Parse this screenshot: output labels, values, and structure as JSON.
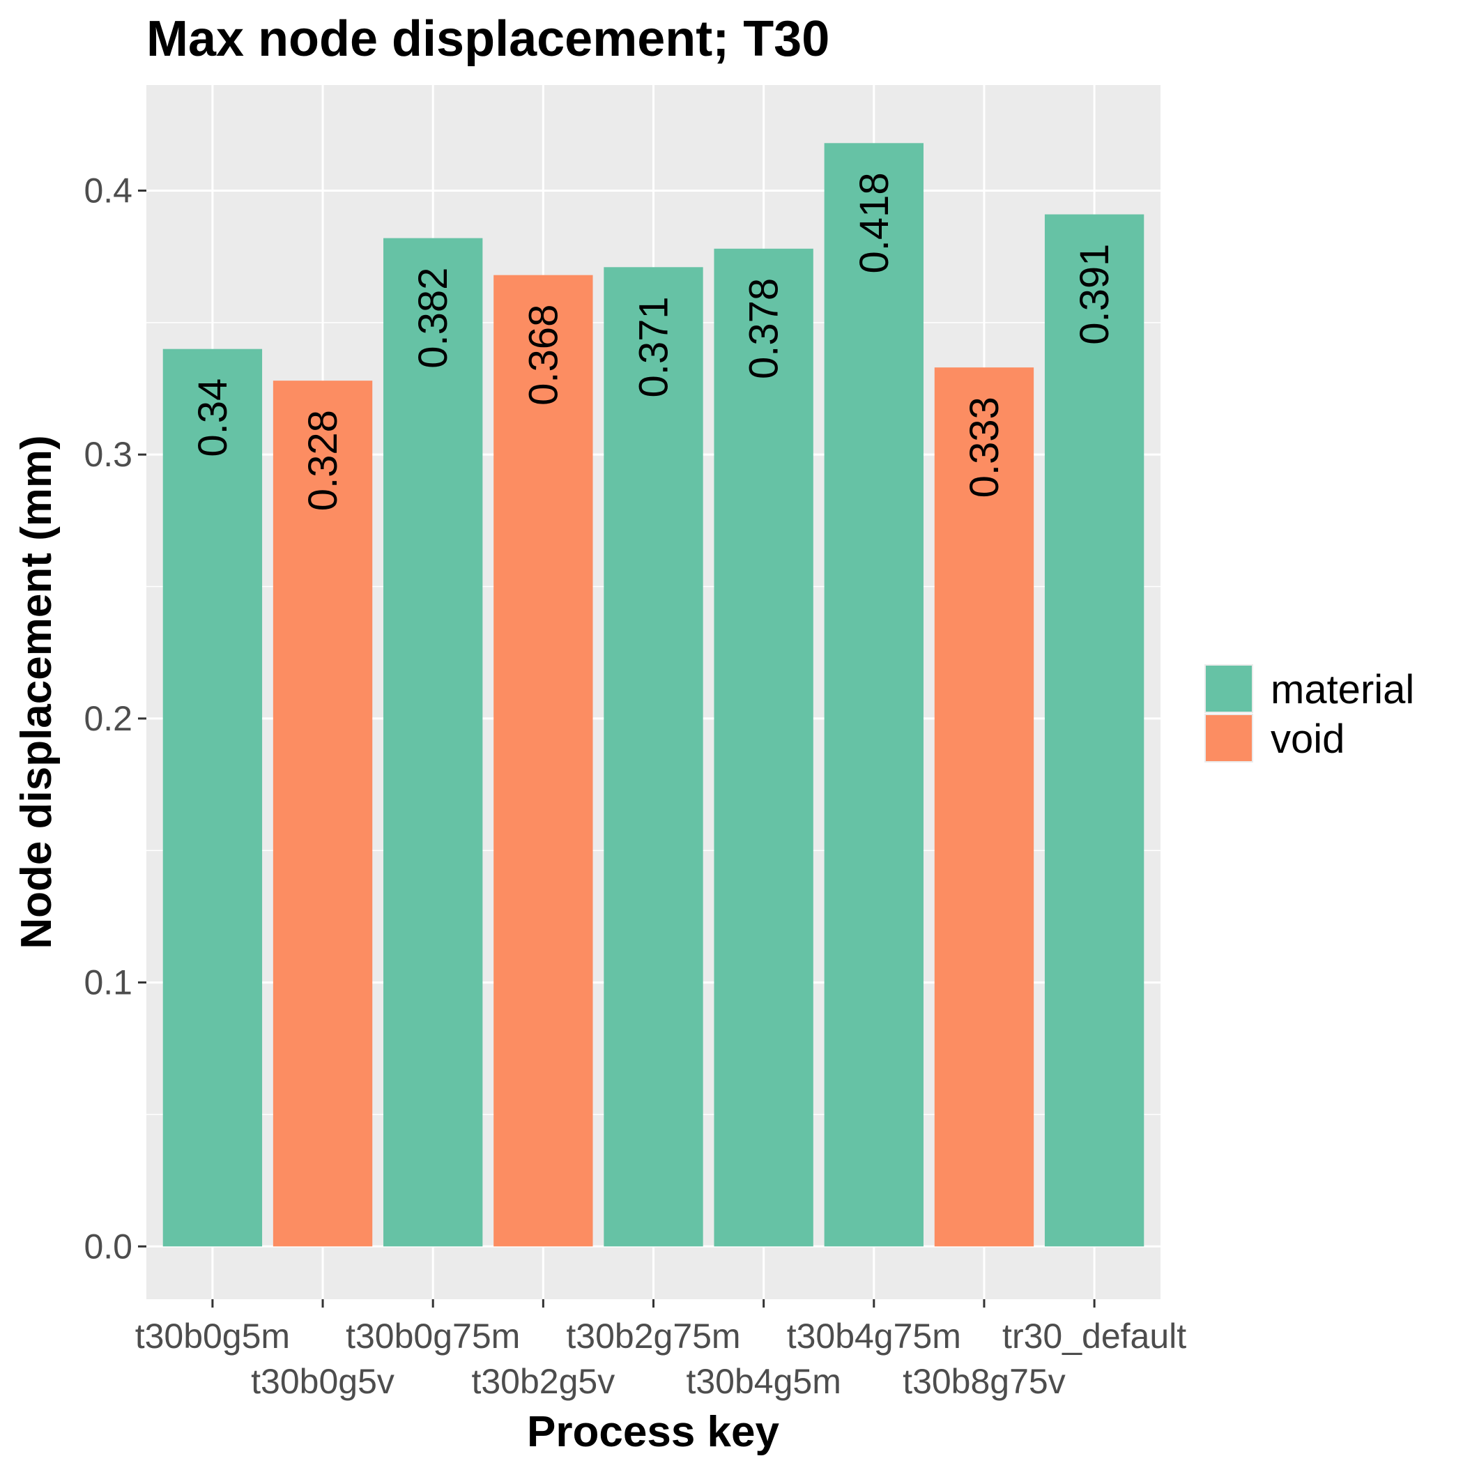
{
  "chart_data": {
    "type": "bar",
    "title": "Max node displacement; T30",
    "xlabel": "Process key",
    "ylabel": "Node displacement (mm)",
    "ylim": [
      -0.02,
      0.44
    ],
    "yticks": [
      "0.0",
      "0.1",
      "0.2",
      "0.3",
      "0.4"
    ],
    "grid": true,
    "legend_position": "right",
    "categories": [
      "t30b0g5m",
      "t30b0g5v",
      "t30b0g75m",
      "t30b2g5v",
      "t30b2g75m",
      "t30b4g5m",
      "t30b4g75m",
      "t30b8g75v",
      "tr30_default"
    ],
    "values": [
      0.34,
      0.328,
      0.382,
      0.368,
      0.371,
      0.378,
      0.418,
      0.333,
      0.391
    ],
    "value_labels": [
      "0.34",
      "0.328",
      "0.382",
      "0.368",
      "0.371",
      "0.378",
      "0.418",
      "0.333",
      "0.391"
    ],
    "groups": [
      "material",
      "void",
      "material",
      "void",
      "material",
      "material",
      "material",
      "void",
      "material"
    ],
    "legend": [
      {
        "name": "material",
        "color": "#66c2a5"
      },
      {
        "name": "void",
        "color": "#fc8d62"
      }
    ],
    "colors": {
      "panel_background": "#ebebeb",
      "grid": "#ffffff",
      "tick": "#333333"
    }
  }
}
